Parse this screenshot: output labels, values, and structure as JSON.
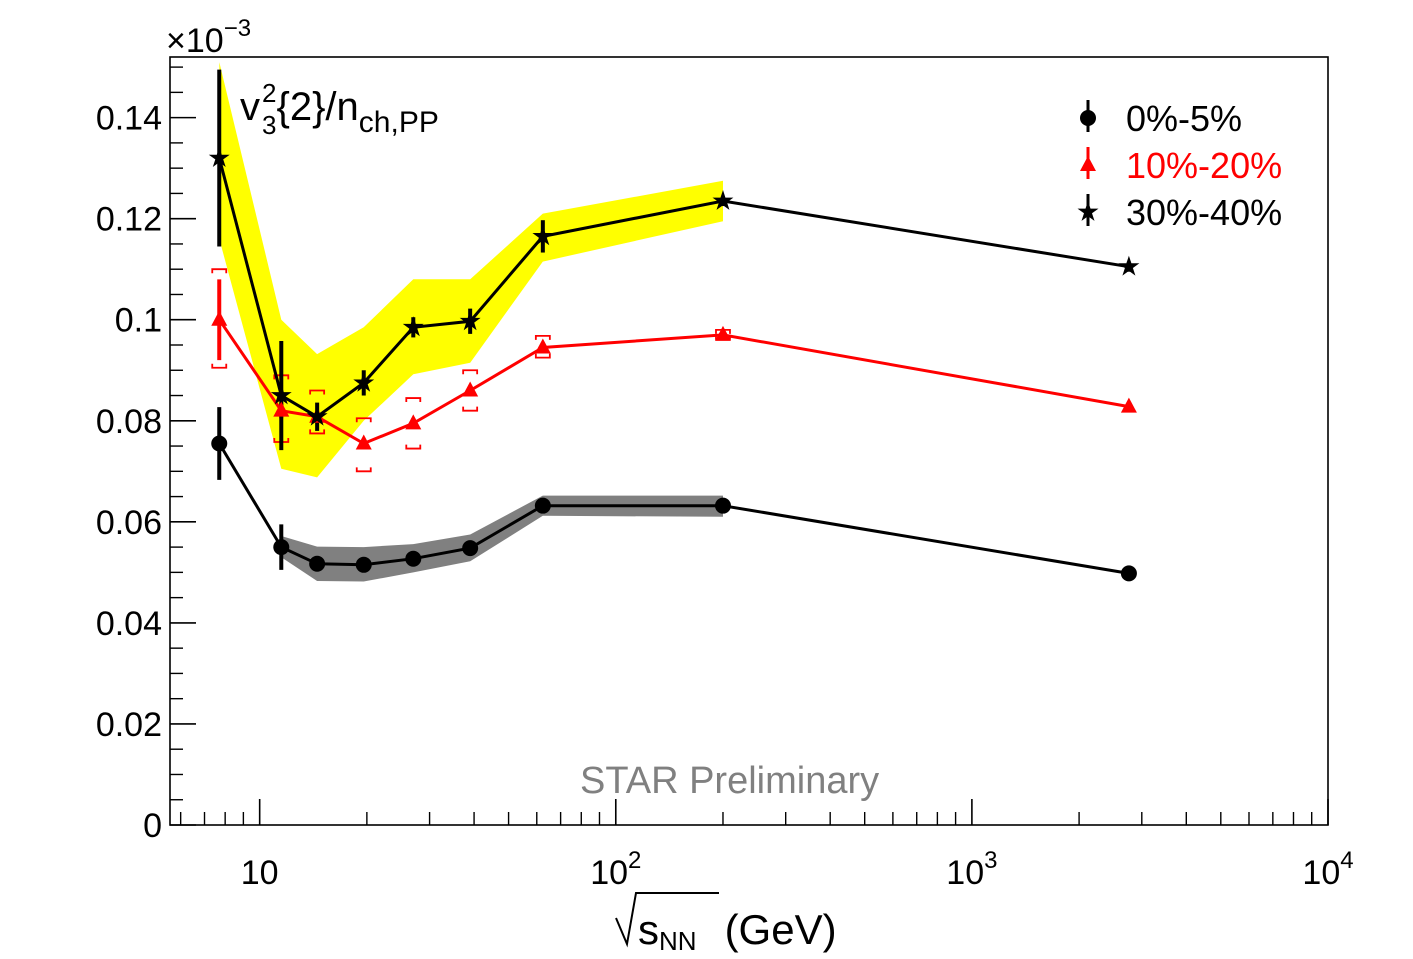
{
  "chart_data": {
    "type": "line",
    "title": "",
    "ylabel_main": "v",
    "ylabel_sub": "3",
    "ylabel_sup": "2",
    "ylabel_rest": "{2}/n",
    "ylabel_sub2": "ch,PP",
    "y_multiplier_base": "×10",
    "y_multiplier_exp": "−3",
    "xlabel_main": "s",
    "xlabel_sub": "NN",
    "xlabel_unit": "(GeV)",
    "annotation": "STAR Preliminary",
    "x_scale": "log",
    "xlim": [
      5.6,
      10000
    ],
    "ylim": [
      0,
      0.152
    ],
    "y_ticks": [
      {
        "value": 0,
        "label": "0"
      },
      {
        "value": 0.02,
        "label": "0.02"
      },
      {
        "value": 0.04,
        "label": "0.04"
      },
      {
        "value": 0.06,
        "label": "0.06"
      },
      {
        "value": 0.08,
        "label": "0.08"
      },
      {
        "value": 0.1,
        "label": "0.1"
      },
      {
        "value": 0.12,
        "label": "0.12"
      },
      {
        "value": 0.14,
        "label": "0.14"
      }
    ],
    "x_ticks": [
      {
        "value": 10,
        "base": "10",
        "exp": ""
      },
      {
        "value": 100,
        "base": "10",
        "exp": "2"
      },
      {
        "value": 1000,
        "base": "10",
        "exp": "3"
      },
      {
        "value": 10000,
        "base": "10",
        "exp": "4"
      }
    ],
    "legend_position": "top-right",
    "series": [
      {
        "name": "0%-5%",
        "color": "#000000",
        "marker": "circle",
        "band_color": "#808080",
        "points": [
          {
            "x": 7.7,
            "y": 0.0755,
            "err": 0.0072
          },
          {
            "x": 11.5,
            "y": 0.055,
            "err": 0.0045
          },
          {
            "x": 14.5,
            "y": 0.0517,
            "err": 0.0012
          },
          {
            "x": 19.6,
            "y": 0.0515,
            "err": 0.001
          },
          {
            "x": 27,
            "y": 0.0527,
            "err": 0.0008
          },
          {
            "x": 39,
            "y": 0.0548,
            "err": 0.0008
          },
          {
            "x": 62.4,
            "y": 0.0632,
            "err": 0.0005
          },
          {
            "x": 200,
            "y": 0.0632,
            "err": 0.0003
          },
          {
            "x": 2760,
            "y": 0.0498,
            "err": 0.0003
          }
        ],
        "band": [
          {
            "x": 11.5,
            "lo": 0.053,
            "hi": 0.0572
          },
          {
            "x": 14.5,
            "lo": 0.0483,
            "hi": 0.0551
          },
          {
            "x": 19.6,
            "lo": 0.0482,
            "hi": 0.055
          },
          {
            "x": 27,
            "lo": 0.05,
            "hi": 0.0556
          },
          {
            "x": 39,
            "lo": 0.0522,
            "hi": 0.0575
          },
          {
            "x": 62.4,
            "lo": 0.0612,
            "hi": 0.0652
          },
          {
            "x": 200,
            "lo": 0.061,
            "hi": 0.0652
          }
        ]
      },
      {
        "name": "10%-20%",
        "color": "#ff0000",
        "marker": "triangle",
        "points": [
          {
            "x": 7.7,
            "y": 0.1,
            "err": 0.008
          },
          {
            "x": 11.5,
            "y": 0.082,
            "err": 0.0015
          },
          {
            "x": 14.5,
            "y": 0.0808,
            "err": 0.0012
          },
          {
            "x": 19.6,
            "y": 0.0755,
            "err": 0.001
          },
          {
            "x": 27,
            "y": 0.0795,
            "err": 0.001
          },
          {
            "x": 39,
            "y": 0.086,
            "err": 0.0008
          },
          {
            "x": 62.4,
            "y": 0.0945,
            "err": 0.0008
          },
          {
            "x": 200,
            "y": 0.097,
            "err": 0.0005
          },
          {
            "x": 2760,
            "y": 0.0828,
            "err": 0.0004
          }
        ],
        "sys": [
          {
            "x": 7.7,
            "lo": 0.0905,
            "hi": 0.11
          },
          {
            "x": 11.5,
            "lo": 0.0758,
            "hi": 0.089
          },
          {
            "x": 14.5,
            "lo": 0.0775,
            "hi": 0.086
          },
          {
            "x": 19.6,
            "lo": 0.07,
            "hi": 0.0805
          },
          {
            "x": 27,
            "lo": 0.0745,
            "hi": 0.0845
          },
          {
            "x": 39,
            "lo": 0.082,
            "hi": 0.09
          },
          {
            "x": 62.4,
            "lo": 0.0925,
            "hi": 0.0968
          },
          {
            "x": 200,
            "lo": 0.0962,
            "hi": 0.098
          }
        ]
      },
      {
        "name": "30%-40%",
        "color": "#000000",
        "marker": "star",
        "band_color": "#ffff00",
        "points": [
          {
            "x": 7.7,
            "y": 0.132,
            "err": 0.0175
          },
          {
            "x": 11.5,
            "y": 0.085,
            "err": 0.0108
          },
          {
            "x": 14.5,
            "y": 0.0808,
            "err": 0.0028
          },
          {
            "x": 19.6,
            "y": 0.0875,
            "err": 0.0025
          },
          {
            "x": 27,
            "y": 0.0985,
            "err": 0.002
          },
          {
            "x": 39,
            "y": 0.0997,
            "err": 0.0025
          },
          {
            "x": 62.4,
            "y": 0.1165,
            "err": 0.0032
          },
          {
            "x": 200,
            "y": 0.1235,
            "err": 0.001
          },
          {
            "x": 2760,
            "y": 0.1105,
            "err": 0.001
          }
        ],
        "band": [
          {
            "x": 7.7,
            "lo": 0.116,
            "hi": 0.151
          },
          {
            "x": 11.5,
            "lo": 0.0705,
            "hi": 0.1
          },
          {
            "x": 14.5,
            "lo": 0.0688,
            "hi": 0.0932
          },
          {
            "x": 19.6,
            "lo": 0.08,
            "hi": 0.0985
          },
          {
            "x": 27,
            "lo": 0.0892,
            "hi": 0.108
          },
          {
            "x": 39,
            "lo": 0.0915,
            "hi": 0.108
          },
          {
            "x": 62.4,
            "lo": 0.1115,
            "hi": 0.121
          },
          {
            "x": 200,
            "lo": 0.1195,
            "hi": 0.1275
          }
        ]
      }
    ]
  }
}
